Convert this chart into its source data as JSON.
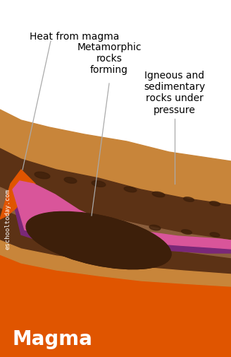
{
  "background_color": "#ffffff",
  "magma_color": "#e05500",
  "magma_text": "Magma",
  "magma_text_color": "#ffffff",
  "magma_text_fontsize": 20,
  "layer_tan_color": "#c8853a",
  "layer_dark_brown_color": "#5c3215",
  "layer_mid_brown_color": "#8B5e3c",
  "dark_oval_color": "#3d1f0a",
  "purple_color": "#7a2878",
  "pink_color": "#d9559a",
  "watermark_text": "eschooltoday.com",
  "watermark_color": "#ffffff",
  "label1_text": "Heat from magma",
  "label2_text": "Metamorphic\nrocks\nforming",
  "label3_text": "Igneous and\nsedimentary\nrocks under\npressure",
  "label_fontsize": 10,
  "line_color": "#aaaaaa",
  "figsize": [
    3.28,
    5.05
  ],
  "dpi": 100
}
